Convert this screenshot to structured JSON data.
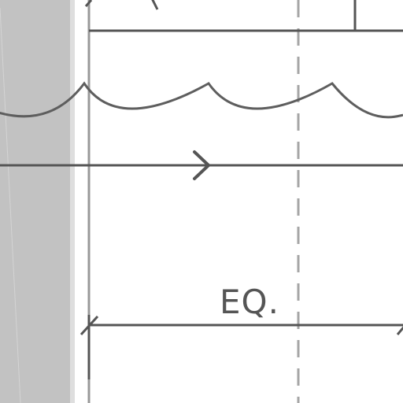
{
  "dimension": {
    "label": "EQ."
  },
  "colors": {
    "line": "#555555",
    "cloud": "#5e5e5e",
    "centerline": "#a6a6a6",
    "wall_hatch": "#c2c2c2",
    "wall_edge": "#dedede",
    "background": "#ffffff"
  },
  "icons": {
    "flow_arrow": "chevron-right-icon",
    "tick": "dimension-tick-icon"
  }
}
